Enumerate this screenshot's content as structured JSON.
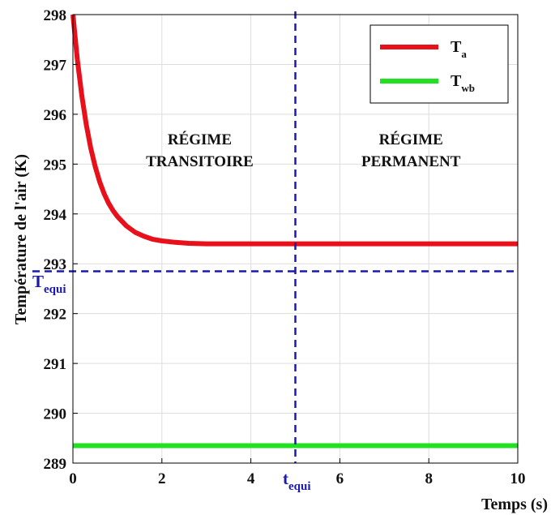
{
  "chart_data": {
    "type": "line",
    "title": "",
    "xlabel": "Temps (s)",
    "ylabel": "Température de l'air (K)",
    "xlim": [
      0,
      10
    ],
    "ylim": [
      289,
      298
    ],
    "xticks": [
      "0",
      "2",
      "4",
      "6",
      "8",
      "10"
    ],
    "yticks": [
      "289",
      "290",
      "291",
      "292",
      "293",
      "294",
      "295",
      "296",
      "297",
      "298"
    ],
    "grid": true,
    "legend_position": "top-right",
    "series": [
      {
        "name": "T",
        "subscript": "a",
        "color": "#e8101a",
        "x": [
          0,
          0.1,
          0.2,
          0.3,
          0.4,
          0.5,
          0.6,
          0.7,
          0.8,
          0.9,
          1.0,
          1.2,
          1.4,
          1.6,
          1.8,
          2.0,
          2.3,
          2.6,
          3.0,
          3.5,
          4.0,
          5.0,
          6.0,
          7.0,
          8.0,
          9.0,
          10.0
        ],
        "y": [
          298.0,
          297.09,
          296.37,
          295.79,
          295.32,
          294.95,
          294.65,
          294.41,
          294.22,
          294.07,
          293.95,
          293.76,
          293.63,
          293.55,
          293.49,
          293.46,
          293.43,
          293.41,
          293.4,
          293.4,
          293.4,
          293.4,
          293.4,
          293.4,
          293.4,
          293.4,
          293.4
        ]
      },
      {
        "name": "T",
        "subscript": "wb",
        "color": "#22e022",
        "x": [
          0,
          10
        ],
        "y": [
          289.35,
          289.35
        ]
      }
    ],
    "reference_lines": [
      {
        "type": "horizontal",
        "value": 292.85,
        "color": "#1a1ab0",
        "label": "T",
        "label_sub": "equi"
      },
      {
        "type": "vertical",
        "value": 5.0,
        "color": "#1a1ab0",
        "label": "t",
        "label_sub": "equi"
      }
    ],
    "annotations": [
      {
        "lines": [
          "RÉGIME",
          "TRANSITOIRE"
        ],
        "x": 2.85,
        "y": 295.4
      },
      {
        "lines": [
          "RÉGIME",
          "PERMANENT"
        ],
        "x": 7.6,
        "y": 295.4
      }
    ]
  }
}
